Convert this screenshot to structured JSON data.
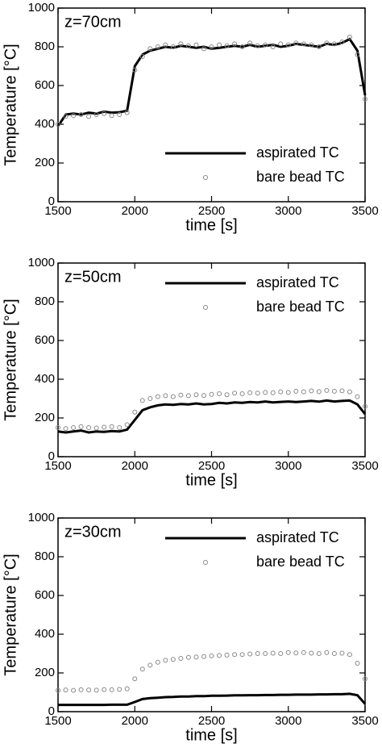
{
  "chart_data": [
    {
      "type": "line",
      "annotation": "z=70cm",
      "xlabel": "time [s]",
      "ylabel": "Temperature [°C]",
      "xlim": [
        1500,
        3500
      ],
      "xticks": [
        1500,
        2000,
        2500,
        3000,
        3500
      ],
      "ylim": [
        0,
        1000
      ],
      "yticks": [
        0,
        200,
        400,
        600,
        800,
        1000
      ],
      "legend": "lower right",
      "x": [
        1500,
        1550,
        1600,
        1650,
        1700,
        1750,
        1800,
        1850,
        1900,
        1950,
        2000,
        2050,
        2100,
        2150,
        2200,
        2250,
        2300,
        2350,
        2400,
        2450,
        2500,
        2550,
        2600,
        2650,
        2700,
        2750,
        2800,
        2850,
        2900,
        2950,
        3000,
        3050,
        3100,
        3150,
        3200,
        3250,
        3300,
        3350,
        3400,
        3450,
        3500
      ],
      "series": [
        {
          "name": "aspirated TC",
          "style": "line",
          "color": "#000000",
          "values": [
            390,
            450,
            455,
            450,
            460,
            455,
            465,
            460,
            462,
            470,
            700,
            760,
            780,
            790,
            800,
            795,
            805,
            800,
            795,
            800,
            790,
            795,
            800,
            805,
            800,
            810,
            800,
            805,
            810,
            800,
            805,
            815,
            810,
            805,
            800,
            815,
            810,
            820,
            840,
            780,
            550
          ]
        },
        {
          "name": "bare bead TC",
          "style": "markers",
          "color": "#888888",
          "values": [
            400,
            440,
            445,
            450,
            440,
            450,
            455,
            445,
            450,
            460,
            680,
            750,
            790,
            800,
            810,
            800,
            815,
            805,
            810,
            790,
            800,
            810,
            805,
            815,
            800,
            820,
            805,
            810,
            800,
            815,
            810,
            820,
            815,
            810,
            800,
            820,
            815,
            825,
            850,
            760,
            530
          ]
        }
      ]
    },
    {
      "type": "line",
      "annotation": "z=50cm",
      "xlabel": "time [s]",
      "ylabel": "Temperature [°C]",
      "xlim": [
        1500,
        3500
      ],
      "xticks": [
        1500,
        2000,
        2500,
        3000,
        3500
      ],
      "ylim": [
        0,
        1000
      ],
      "yticks": [
        0,
        200,
        400,
        600,
        800,
        1000
      ],
      "legend": "upper right",
      "x": [
        1500,
        1550,
        1600,
        1650,
        1700,
        1750,
        1800,
        1850,
        1900,
        1950,
        2000,
        2050,
        2100,
        2150,
        2200,
        2250,
        2300,
        2350,
        2400,
        2450,
        2500,
        2550,
        2600,
        2650,
        2700,
        2750,
        2800,
        2850,
        2900,
        2950,
        3000,
        3050,
        3100,
        3150,
        3200,
        3250,
        3300,
        3350,
        3400,
        3450,
        3500
      ],
      "series": [
        {
          "name": "aspirated TC",
          "style": "line",
          "color": "#000000",
          "values": [
            130,
            125,
            130,
            135,
            125,
            130,
            128,
            132,
            130,
            140,
            190,
            240,
            255,
            265,
            270,
            268,
            272,
            270,
            275,
            270,
            272,
            278,
            275,
            280,
            278,
            282,
            280,
            285,
            280,
            283,
            285,
            282,
            285,
            288,
            284,
            290,
            285,
            288,
            290,
            270,
            220
          ]
        },
        {
          "name": "bare bead TC",
          "style": "markers",
          "color": "#888888",
          "values": [
            150,
            145,
            150,
            155,
            150,
            148,
            152,
            155,
            150,
            165,
            230,
            290,
            300,
            310,
            315,
            310,
            318,
            315,
            320,
            316,
            322,
            325,
            320,
            328,
            325,
            330,
            328,
            332,
            330,
            335,
            332,
            338,
            335,
            340,
            336,
            342,
            338,
            340,
            335,
            310,
            260
          ]
        }
      ]
    },
    {
      "type": "line",
      "annotation": "z=30cm",
      "xlabel": "time [s]",
      "ylabel": "Temperature [°C]",
      "xlim": [
        1500,
        3500
      ],
      "xticks": [
        1500,
        2000,
        2500,
        3000,
        3500
      ],
      "ylim": [
        0,
        1000
      ],
      "yticks": [
        0,
        200,
        400,
        600,
        800,
        1000
      ],
      "legend": "upper right",
      "x": [
        1500,
        1550,
        1600,
        1650,
        1700,
        1750,
        1800,
        1850,
        1900,
        1950,
        2000,
        2050,
        2100,
        2150,
        2200,
        2250,
        2300,
        2350,
        2400,
        2450,
        2500,
        2550,
        2600,
        2650,
        2700,
        2750,
        2800,
        2850,
        2900,
        2950,
        3000,
        3050,
        3100,
        3150,
        3200,
        3250,
        3300,
        3350,
        3400,
        3450,
        3500
      ],
      "series": [
        {
          "name": "aspirated TC",
          "style": "line",
          "color": "#000000",
          "values": [
            35,
            35,
            35,
            35,
            35,
            35,
            35,
            36,
            36,
            36,
            50,
            65,
            70,
            72,
            75,
            76,
            78,
            78,
            80,
            80,
            82,
            82,
            83,
            84,
            84,
            85,
            85,
            86,
            86,
            87,
            87,
            88,
            88,
            88,
            89,
            89,
            90,
            90,
            92,
            85,
            40
          ]
        },
        {
          "name": "bare bead TC",
          "style": "markers",
          "color": "#888888",
          "values": [
            110,
            112,
            110,
            113,
            112,
            111,
            114,
            113,
            115,
            118,
            170,
            220,
            240,
            255,
            265,
            270,
            275,
            280,
            282,
            285,
            288,
            290,
            292,
            295,
            295,
            298,
            300,
            300,
            302,
            300,
            305,
            303,
            305,
            302,
            300,
            305,
            300,
            302,
            295,
            250,
            170
          ]
        }
      ]
    }
  ]
}
